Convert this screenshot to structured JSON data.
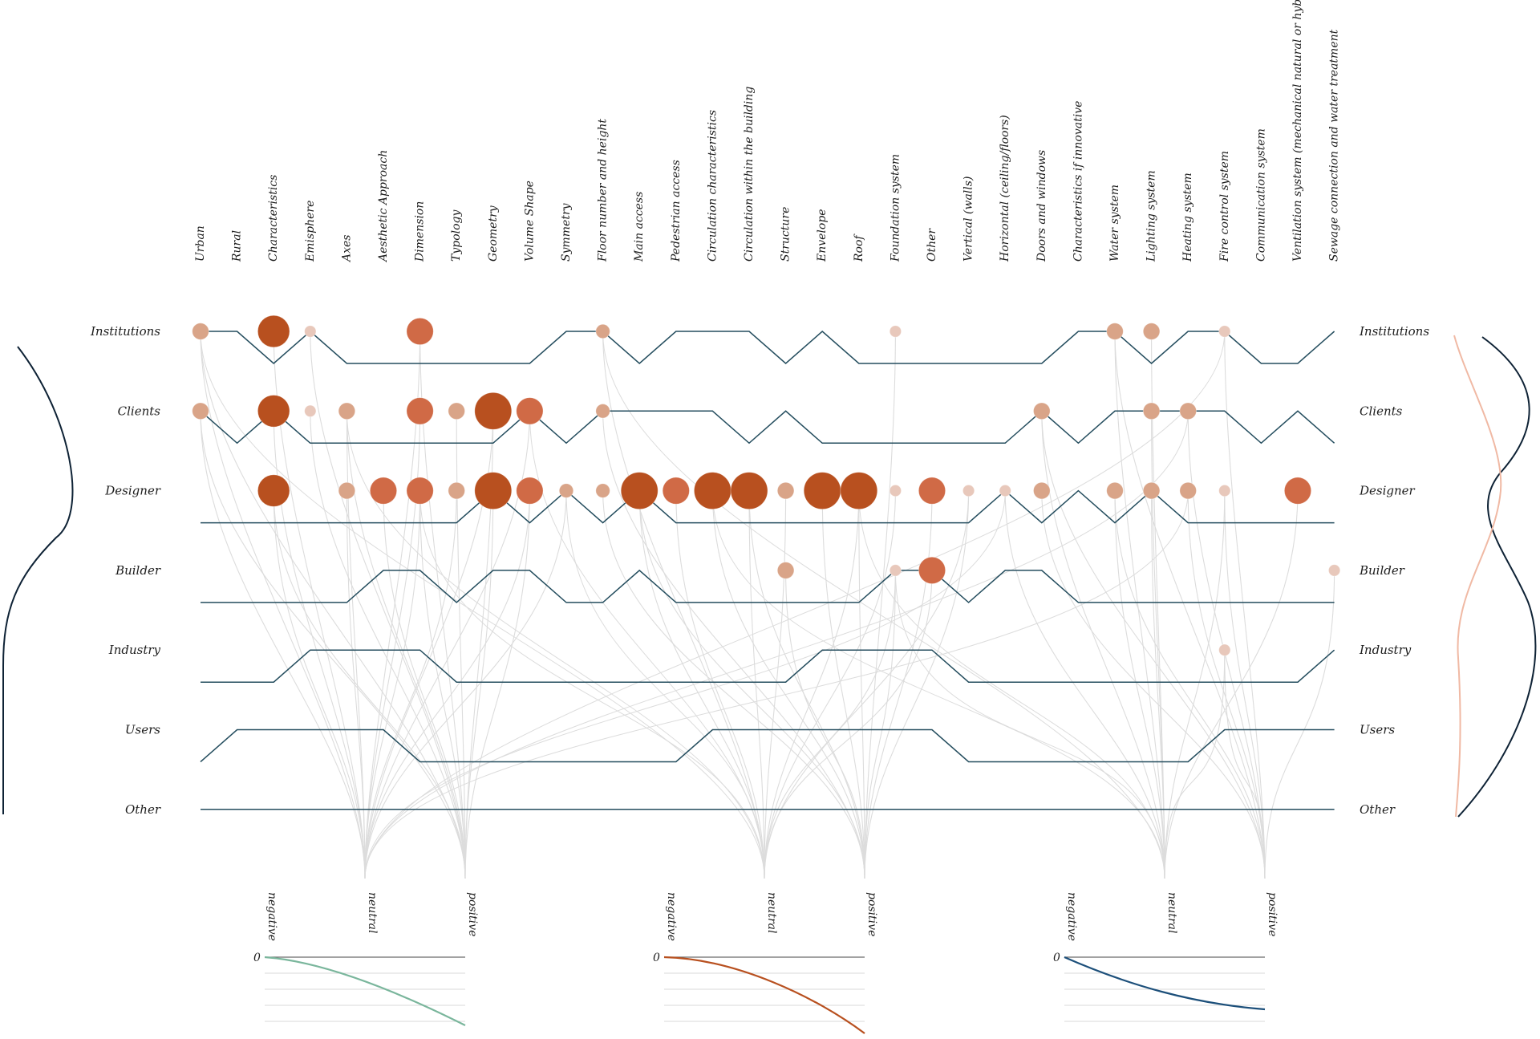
{
  "chart_data": {
    "type": "dot-matrix network",
    "title": "",
    "columns": [
      "Urban",
      "Rural",
      "Characteristics",
      "Emisphere",
      "Axes",
      "Aesthetic Approach",
      "Dimension",
      "Typology",
      "Geometry",
      "Volume Shape",
      "Symmetry",
      "Floor number and height",
      "Main access",
      "Pedestrian access",
      "Circulation characteristics",
      "Circulation within the building",
      "Structure",
      "Envelope",
      "Roof",
      "Foundation system",
      "Other",
      "Vertical (walls)",
      "Horizontal (ceiling/floors)",
      "Doors and windows",
      "Characteristics if innovative",
      "Water system",
      "Lighting system",
      "Heating system",
      "Fire control system",
      "Communication system",
      "Ventilation system (mechanical natural or hybrid)",
      "Sewage connection and water treatment"
    ],
    "rows": [
      "Institutions",
      "Clients",
      "Designer",
      "Builder",
      "Industry",
      "Users",
      "Other"
    ],
    "circles": [
      {
        "row": 0,
        "col": 0,
        "value": 2
      },
      {
        "row": 0,
        "col": 2,
        "value": 5
      },
      {
        "row": 0,
        "col": 3,
        "value": 1
      },
      {
        "row": 0,
        "col": 6,
        "value": 4
      },
      {
        "row": 0,
        "col": 11,
        "value": 1.5
      },
      {
        "row": 0,
        "col": 19,
        "value": 1
      },
      {
        "row": 0,
        "col": 25,
        "value": 2
      },
      {
        "row": 0,
        "col": 26,
        "value": 2
      },
      {
        "row": 0,
        "col": 28,
        "value": 1
      },
      {
        "row": 1,
        "col": 0,
        "value": 2
      },
      {
        "row": 1,
        "col": 2,
        "value": 5
      },
      {
        "row": 1,
        "col": 3,
        "value": 1
      },
      {
        "row": 1,
        "col": 4,
        "value": 2
      },
      {
        "row": 1,
        "col": 6,
        "value": 4
      },
      {
        "row": 1,
        "col": 7,
        "value": 2
      },
      {
        "row": 1,
        "col": 8,
        "value": 6
      },
      {
        "row": 1,
        "col": 9,
        "value": 4
      },
      {
        "row": 1,
        "col": 11,
        "value": 1.5
      },
      {
        "row": 1,
        "col": 23,
        "value": 2
      },
      {
        "row": 1,
        "col": 26,
        "value": 2
      },
      {
        "row": 1,
        "col": 27,
        "value": 2
      },
      {
        "row": 2,
        "col": 2,
        "value": 5
      },
      {
        "row": 2,
        "col": 4,
        "value": 2
      },
      {
        "row": 2,
        "col": 5,
        "value": 4
      },
      {
        "row": 2,
        "col": 6,
        "value": 4
      },
      {
        "row": 2,
        "col": 7,
        "value": 2
      },
      {
        "row": 2,
        "col": 8,
        "value": 6
      },
      {
        "row": 2,
        "col": 9,
        "value": 4
      },
      {
        "row": 2,
        "col": 10,
        "value": 1.5
      },
      {
        "row": 2,
        "col": 11,
        "value": 1.5
      },
      {
        "row": 2,
        "col": 12,
        "value": 6
      },
      {
        "row": 2,
        "col": 13,
        "value": 4
      },
      {
        "row": 2,
        "col": 14,
        "value": 6
      },
      {
        "row": 2,
        "col": 15,
        "value": 6
      },
      {
        "row": 2,
        "col": 16,
        "value": 2
      },
      {
        "row": 2,
        "col": 17,
        "value": 6
      },
      {
        "row": 2,
        "col": 18,
        "value": 6
      },
      {
        "row": 2,
        "col": 19,
        "value": 1
      },
      {
        "row": 2,
        "col": 20,
        "value": 4
      },
      {
        "row": 2,
        "col": 21,
        "value": 1
      },
      {
        "row": 2,
        "col": 22,
        "value": 1
      },
      {
        "row": 2,
        "col": 23,
        "value": 2
      },
      {
        "row": 2,
        "col": 25,
        "value": 2
      },
      {
        "row": 2,
        "col": 26,
        "value": 2
      },
      {
        "row": 2,
        "col": 27,
        "value": 2
      },
      {
        "row": 2,
        "col": 28,
        "value": 1
      },
      {
        "row": 2,
        "col": 30,
        "value": 4
      },
      {
        "row": 3,
        "col": 16,
        "value": 2
      },
      {
        "row": 3,
        "col": 19,
        "value": 1
      },
      {
        "row": 3,
        "col": 20,
        "value": 4
      },
      {
        "row": 3,
        "col": 31,
        "value": 1
      },
      {
        "row": 4,
        "col": 28,
        "value": 1
      }
    ],
    "sentiment_groups": [
      {
        "labels": [
          "negative",
          "neutral",
          "positive"
        ],
        "value_label": "0",
        "curve_color": "#7ab69c"
      },
      {
        "labels": [
          "negative",
          "neutral",
          "positive"
        ],
        "value_label": "0",
        "curve_color": "#b8501f"
      },
      {
        "labels": [
          "negative",
          "neutral",
          "positive"
        ],
        "value_label": "0",
        "curve_color": "#1c4f7a"
      }
    ],
    "colors": {
      "high": "#b8501f",
      "mid": "#d06a46",
      "low": "#d9a488",
      "faint": "#e8c8bb",
      "step_line": "#244d5e",
      "connector": "#dcdcdc",
      "dark_curve": "#0e2235",
      "pink_curve": "#f0b9a4"
    }
  }
}
